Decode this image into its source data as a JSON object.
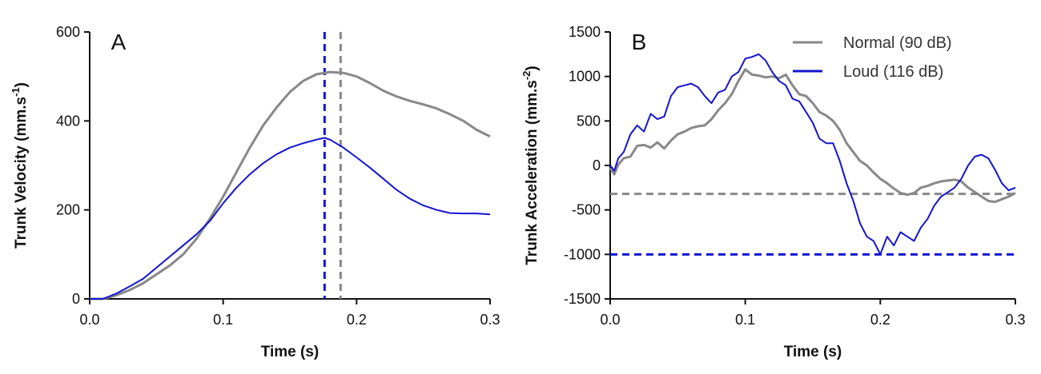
{
  "colors": {
    "normal": "#888888",
    "loud": "#1414d2"
  },
  "chart_data": [
    {
      "type": "line",
      "panel_label": "A",
      "xlabel": "Time (s)",
      "ylabel_main": "Trunk  Velocity (mm.s",
      "ylabel_sup": "-1",
      "ylabel_end": ")",
      "xlim": [
        0,
        0.3
      ],
      "ylim": [
        0,
        600
      ],
      "xticks": [
        0.0,
        0.1,
        0.2,
        0.3
      ],
      "xtick_labels": [
        "0.0",
        "0.1",
        "0.2",
        "0.3"
      ],
      "yticks": [
        0,
        200,
        400,
        600
      ],
      "ytick_labels": [
        "0",
        "200",
        "400",
        "600"
      ],
      "series": [
        {
          "key": "normal",
          "x": [
            0,
            0.01,
            0.02,
            0.03,
            0.04,
            0.05,
            0.06,
            0.07,
            0.08,
            0.09,
            0.1,
            0.11,
            0.12,
            0.13,
            0.14,
            0.15,
            0.16,
            0.17,
            0.18,
            0.19,
            0.2,
            0.21,
            0.22,
            0.23,
            0.24,
            0.25,
            0.26,
            0.27,
            0.28,
            0.29,
            0.3
          ],
          "y": [
            0,
            0,
            8,
            20,
            35,
            55,
            75,
            100,
            135,
            180,
            230,
            285,
            340,
            390,
            430,
            465,
            490,
            505,
            510,
            508,
            500,
            485,
            468,
            455,
            445,
            437,
            428,
            415,
            400,
            380,
            365
          ]
        },
        {
          "key": "loud",
          "x": [
            0,
            0.01,
            0.02,
            0.03,
            0.04,
            0.05,
            0.06,
            0.07,
            0.08,
            0.09,
            0.1,
            0.11,
            0.12,
            0.13,
            0.14,
            0.15,
            0.16,
            0.17,
            0.176,
            0.18,
            0.19,
            0.2,
            0.21,
            0.22,
            0.23,
            0.24,
            0.25,
            0.26,
            0.27,
            0.28,
            0.29,
            0.3
          ],
          "y": [
            0,
            0,
            12,
            28,
            45,
            70,
            95,
            120,
            145,
            175,
            215,
            250,
            280,
            305,
            325,
            340,
            350,
            358,
            362,
            358,
            340,
            318,
            295,
            270,
            245,
            225,
            210,
            200,
            193,
            192,
            192,
            190
          ]
        }
      ],
      "vlines": [
        {
          "key": "loud",
          "x": 0.176
        },
        {
          "key": "normal",
          "x": 0.188
        }
      ]
    },
    {
      "type": "line",
      "panel_label": "B",
      "xlabel": "Time (s)",
      "ylabel_main": "Trunk  Acceleration (mm.s",
      "ylabel_sup": "-2",
      "ylabel_end": ")",
      "xlim": [
        0,
        0.3
      ],
      "ylim": [
        -1500,
        1500
      ],
      "xticks": [
        0.0,
        0.1,
        0.2,
        0.3
      ],
      "xtick_labels": [
        "0.0",
        "0.1",
        "0.2",
        "0.3"
      ],
      "yticks": [
        -1500,
        -1000,
        -500,
        0,
        500,
        1000,
        1500
      ],
      "ytick_labels": [
        "-1500",
        "-1000",
        "-500",
        "0",
        "500",
        "1000",
        "1500"
      ],
      "legend": [
        {
          "key": "normal",
          "label": "Normal (90 dB)"
        },
        {
          "key": "loud",
          "label": "Loud (116 dB)"
        }
      ],
      "series": [
        {
          "key": "normal",
          "x": [
            0,
            0.003,
            0.006,
            0.01,
            0.015,
            0.02,
            0.025,
            0.03,
            0.035,
            0.04,
            0.045,
            0.05,
            0.055,
            0.06,
            0.065,
            0.07,
            0.075,
            0.08,
            0.085,
            0.09,
            0.095,
            0.1,
            0.105,
            0.11,
            0.115,
            0.12,
            0.125,
            0.13,
            0.135,
            0.14,
            0.145,
            0.15,
            0.155,
            0.16,
            0.165,
            0.17,
            0.175,
            0.18,
            0.185,
            0.19,
            0.195,
            0.2,
            0.205,
            0.21,
            0.215,
            0.22,
            0.225,
            0.23,
            0.235,
            0.24,
            0.245,
            0.25,
            0.255,
            0.26,
            0.265,
            0.27,
            0.275,
            0.28,
            0.285,
            0.29,
            0.295,
            0.3
          ],
          "y": [
            -30,
            -100,
            10,
            80,
            100,
            220,
            230,
            200,
            260,
            190,
            280,
            350,
            380,
            420,
            440,
            450,
            520,
            620,
            700,
            800,
            950,
            1080,
            1020,
            1010,
            990,
            1000,
            980,
            1020,
            900,
            800,
            780,
            700,
            600,
            560,
            500,
            400,
            250,
            150,
            50,
            0,
            -80,
            -150,
            -200,
            -260,
            -310,
            -330,
            -310,
            -250,
            -230,
            -200,
            -180,
            -170,
            -160,
            -180,
            -250,
            -300,
            -350,
            -400,
            -410,
            -380,
            -350,
            -310
          ]
        },
        {
          "key": "loud",
          "x": [
            0,
            0.003,
            0.006,
            0.01,
            0.015,
            0.02,
            0.025,
            0.03,
            0.035,
            0.04,
            0.045,
            0.05,
            0.055,
            0.06,
            0.065,
            0.07,
            0.075,
            0.08,
            0.085,
            0.09,
            0.095,
            0.1,
            0.105,
            0.11,
            0.115,
            0.12,
            0.125,
            0.13,
            0.135,
            0.14,
            0.145,
            0.15,
            0.155,
            0.16,
            0.165,
            0.17,
            0.175,
            0.18,
            0.185,
            0.19,
            0.195,
            0.2,
            0.205,
            0.21,
            0.215,
            0.22,
            0.225,
            0.23,
            0.235,
            0.24,
            0.245,
            0.25,
            0.255,
            0.26,
            0.265,
            0.27,
            0.275,
            0.28,
            0.285,
            0.29,
            0.295,
            0.3
          ],
          "y": [
            0,
            -60,
            80,
            150,
            350,
            450,
            380,
            580,
            520,
            550,
            780,
            880,
            900,
            920,
            880,
            780,
            700,
            820,
            850,
            1000,
            1050,
            1200,
            1220,
            1250,
            1180,
            1050,
            950,
            900,
            750,
            720,
            600,
            480,
            300,
            250,
            250,
            50,
            -200,
            -400,
            -650,
            -800,
            -850,
            -1000,
            -800,
            -900,
            -750,
            -800,
            -850,
            -700,
            -600,
            -450,
            -350,
            -300,
            -250,
            -150,
            0,
            100,
            120,
            80,
            -50,
            -200,
            -280,
            -250
          ]
        }
      ],
      "hlines": [
        {
          "key": "normal",
          "y": -320
        },
        {
          "key": "loud",
          "y": -1000
        }
      ]
    }
  ]
}
